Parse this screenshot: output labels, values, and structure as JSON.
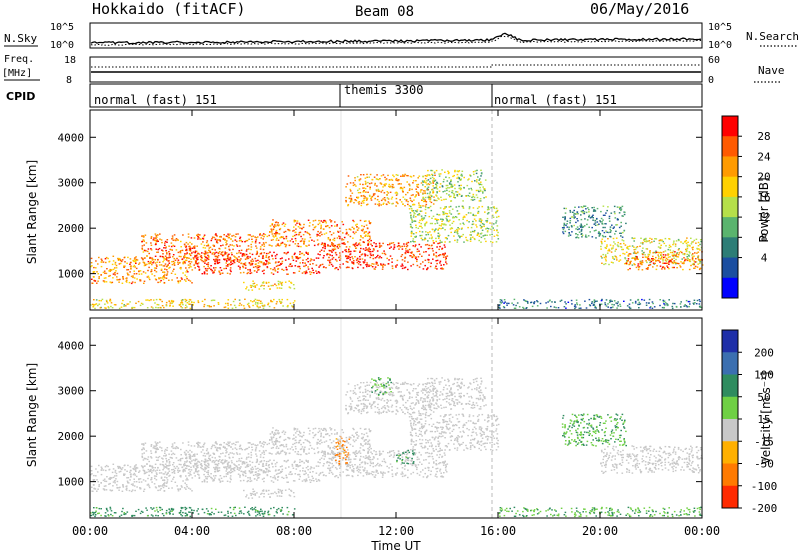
{
  "header": {
    "station": "Hokkaido (fitACF)",
    "beam": "Beam 08",
    "date": "06/May/2016"
  },
  "top_panels": {
    "nsky_label": "N.Sky",
    "nsky_left_ticks": [
      "10^5",
      "10^0"
    ],
    "nsky_right_ticks": [
      "10^5",
      "10^0"
    ],
    "nsearch_label": "N.Search",
    "freq_label_1": "Freq.",
    "freq_label_2": "[MHz]",
    "freq_left_ticks": [
      "18",
      "8"
    ],
    "nave_right_ticks": [
      "60",
      "0"
    ],
    "nave_label": "Nave",
    "cpid_label": "CPID",
    "cpid_segments": [
      {
        "label": "normal (fast) 151",
        "start": 0,
        "end": 10
      },
      {
        "label": "themis 3300",
        "start": 10,
        "end": 16
      },
      {
        "label": "normal (fast) 151",
        "start": 16,
        "end": 24
      }
    ]
  },
  "colorbars": {
    "power": {
      "label": "Power [dB]",
      "ticks": [
        "28",
        "24",
        "20",
        "16",
        "12",
        "8",
        "4"
      ],
      "colors": [
        "#ff0000",
        "#ff5a00",
        "#ff9b00",
        "#ffd100",
        "#b5e04a",
        "#5ab46e",
        "#2d7d76",
        "#1b4ea0",
        "#0000ff"
      ]
    },
    "velocity": {
      "label": "Velocity [m s⁻¹]",
      "ticks": [
        "200",
        "100",
        "50",
        "15",
        "-15",
        "-50",
        "-100",
        "-200"
      ],
      "colors": [
        "#1f2fa8",
        "#3b6fb0",
        "#2f8c5f",
        "#6fd044",
        "#c8c8c8",
        "#ffb000",
        "#ff7a00",
        "#ff2a00"
      ]
    }
  },
  "chart_data": [
    {
      "type": "heatmap",
      "title": "",
      "ylabel": "Slant Range [km]",
      "yticks": [
        "1000",
        "2000",
        "3000",
        "4000"
      ],
      "xlim": [
        0,
        24
      ],
      "ylim": [
        200,
        4600
      ],
      "colorbar": "Power [dB]",
      "clim": [
        0,
        30
      ],
      "regions": [
        {
          "t0": 0.0,
          "t1": 4.0,
          "r0": 800,
          "r1": 1400,
          "value": 22
        },
        {
          "t0": 2.0,
          "t1": 7.0,
          "r0": 1200,
          "r1": 1900,
          "value": 24
        },
        {
          "t0": 4.0,
          "t1": 9.0,
          "r0": 1000,
          "r1": 1500,
          "value": 26
        },
        {
          "t0": 7.0,
          "t1": 11.0,
          "r0": 1600,
          "r1": 2200,
          "value": 23
        },
        {
          "t0": 9.0,
          "t1": 14.0,
          "r0": 1100,
          "r1": 1700,
          "value": 27
        },
        {
          "t0": 10.0,
          "t1": 13.5,
          "r0": 2500,
          "r1": 3200,
          "value": 21
        },
        {
          "t0": 12.5,
          "t1": 16.0,
          "r0": 1700,
          "r1": 2500,
          "value": 15
        },
        {
          "t0": 13.0,
          "t1": 15.5,
          "r0": 2600,
          "r1": 3300,
          "value": 14
        },
        {
          "t0": 6.0,
          "t1": 8.0,
          "r0": 650,
          "r1": 850,
          "value": 19
        },
        {
          "t0": 18.5,
          "t1": 21.0,
          "r0": 1800,
          "r1": 2500,
          "value": 9
        },
        {
          "t0": 20.0,
          "t1": 24.0,
          "r0": 1200,
          "r1": 1800,
          "value": 17
        },
        {
          "t0": 21.0,
          "t1": 24.0,
          "r0": 1100,
          "r1": 1500,
          "value": 24
        },
        {
          "t0": 16.0,
          "t1": 24.0,
          "r0": 250,
          "r1": 450,
          "value": 8
        },
        {
          "t0": 0.0,
          "t1": 8.0,
          "r0": 250,
          "r1": 450,
          "value": 18
        }
      ]
    },
    {
      "type": "heatmap",
      "title": "",
      "ylabel": "Slant Range [km]",
      "xlabel": "Time UT",
      "xticks": [
        "00:00",
        "04:00",
        "08:00",
        "12:00",
        "16:00",
        "20:00",
        "00:00"
      ],
      "yticks": [
        "1000",
        "2000",
        "3000",
        "4000"
      ],
      "xlim": [
        0,
        24
      ],
      "ylim": [
        200,
        4600
      ],
      "colorbar": "Velocity [m s⁻¹]",
      "clim": [
        -250,
        250
      ],
      "regions": [
        {
          "t0": 0.0,
          "t1": 4.0,
          "r0": 800,
          "r1": 1400,
          "value": 0
        },
        {
          "t0": 2.0,
          "t1": 7.0,
          "r0": 1200,
          "r1": 1900,
          "value": 0
        },
        {
          "t0": 4.0,
          "t1": 9.0,
          "r0": 1000,
          "r1": 1500,
          "value": 0
        },
        {
          "t0": 7.0,
          "t1": 11.0,
          "r0": 1600,
          "r1": 2200,
          "value": 0
        },
        {
          "t0": 9.0,
          "t1": 14.0,
          "r0": 1100,
          "r1": 1700,
          "value": 0
        },
        {
          "t0": 10.0,
          "t1": 13.5,
          "r0": 2500,
          "r1": 3200,
          "value": 0
        },
        {
          "t0": 12.5,
          "t1": 16.0,
          "r0": 1700,
          "r1": 2500,
          "value": 0
        },
        {
          "t0": 13.0,
          "t1": 15.5,
          "r0": 2600,
          "r1": 3300,
          "value": 0
        },
        {
          "t0": 6.0,
          "t1": 8.0,
          "r0": 650,
          "r1": 850,
          "value": 0
        },
        {
          "t0": 9.6,
          "t1": 10.2,
          "r0": 1400,
          "r1": 2000,
          "value": -60
        },
        {
          "t0": 11.0,
          "t1": 11.8,
          "r0": 2900,
          "r1": 3300,
          "value": 30
        },
        {
          "t0": 12.0,
          "t1": 12.7,
          "r0": 1400,
          "r1": 1700,
          "value": 40
        },
        {
          "t0": 18.5,
          "t1": 21.0,
          "r0": 1800,
          "r1": 2500,
          "value": 30
        },
        {
          "t0": 20.0,
          "t1": 24.0,
          "r0": 1200,
          "r1": 1800,
          "value": 0
        },
        {
          "t0": 16.0,
          "t1": 24.0,
          "r0": 250,
          "r1": 450,
          "value": 30
        },
        {
          "t0": 0.0,
          "t1": 8.0,
          "r0": 250,
          "r1": 450,
          "value": 40
        }
      ]
    }
  ]
}
